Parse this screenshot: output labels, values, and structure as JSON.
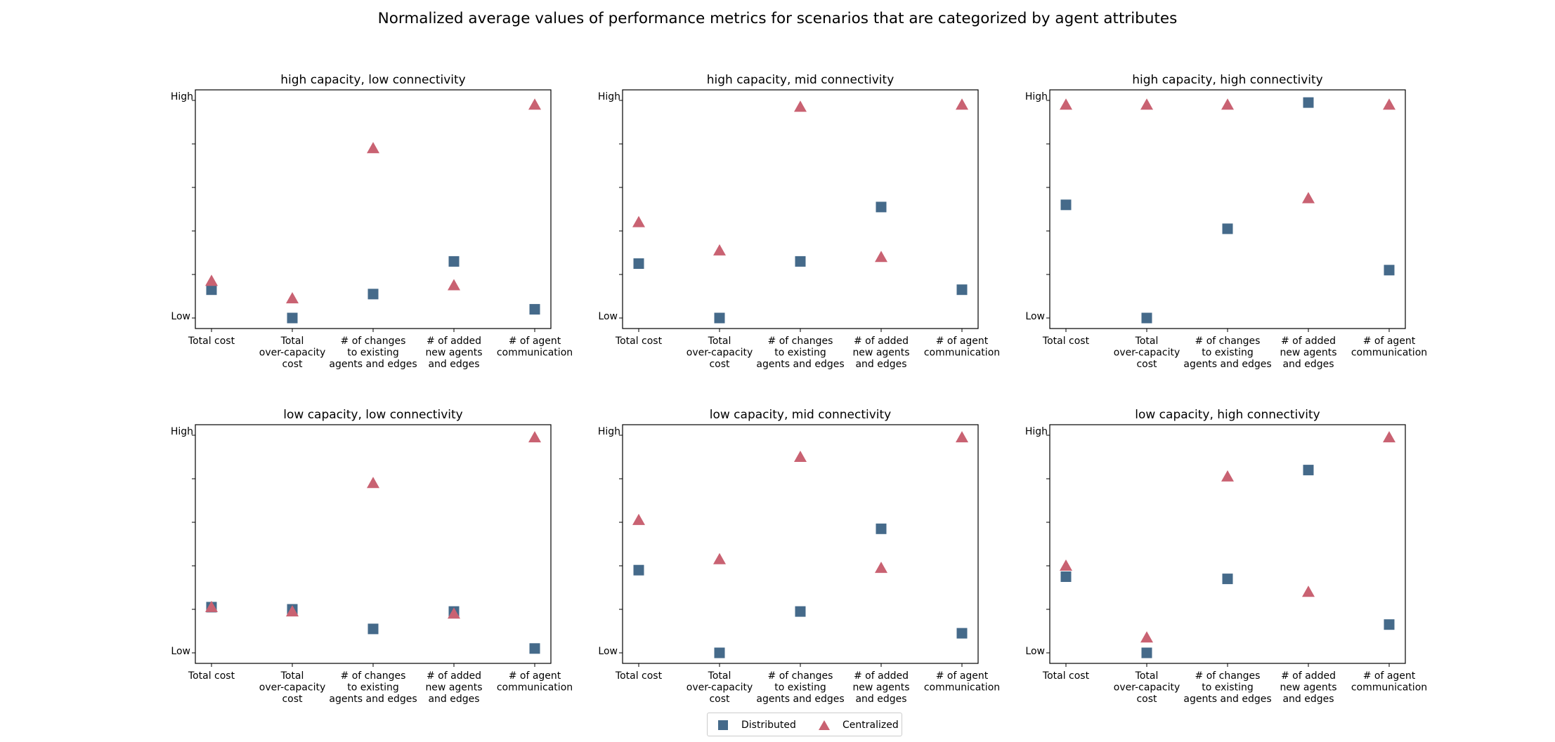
{
  "figure_title": "Normalized average values of performance metrics for scenarios that are categorized by agent attributes",
  "colors": {
    "distributed": "#456a8a",
    "centralized": "#c96272"
  },
  "legend": [
    {
      "label": "Distributed",
      "marker": "square",
      "color": "#456a8a"
    },
    {
      "label": "Centralized",
      "marker": "triangle",
      "color": "#c96272"
    }
  ],
  "chart_data": [
    {
      "type": "scatter",
      "title": "high capacity, low connectivity",
      "categories": [
        "Total cost",
        "Total\nover-capacity\ncost",
        "# of changes\nto existing\nagents and edges",
        "# of added\nnew agents\nand edges",
        "# of agent\ncommunication"
      ],
      "ylim": [
        0,
        1
      ],
      "y_tick_labels": {
        "low": "Low",
        "high": "High"
      },
      "series": [
        {
          "name": "Distributed",
          "marker": "square",
          "values": [
            0.13,
            0.0,
            0.11,
            0.26,
            0.04
          ]
        },
        {
          "name": "Centralized",
          "marker": "triangle",
          "values": [
            0.17,
            0.09,
            0.78,
            0.15,
            0.98
          ]
        }
      ]
    },
    {
      "type": "scatter",
      "title": "high capacity, mid connectivity",
      "categories": [
        "Total cost",
        "Total\nover-capacity\ncost",
        "# of changes\nto existing\nagents and edges",
        "# of added\nnew agents\nand edges",
        "# of agent\ncommunication"
      ],
      "ylim": [
        0,
        1
      ],
      "y_tick_labels": {
        "low": "Low",
        "high": "High"
      },
      "series": [
        {
          "name": "Distributed",
          "marker": "square",
          "values": [
            0.25,
            0.0,
            0.26,
            0.51,
            0.13
          ]
        },
        {
          "name": "Centralized",
          "marker": "triangle",
          "values": [
            0.44,
            0.31,
            0.97,
            0.28,
            0.98
          ]
        }
      ]
    },
    {
      "type": "scatter",
      "title": "high capacity, high connectivity",
      "categories": [
        "Total cost",
        "Total\nover-capacity\ncost",
        "# of changes\nto existing\nagents and edges",
        "# of added\nnew agents\nand edges",
        "# of agent\ncommunication"
      ],
      "ylim": [
        0,
        1
      ],
      "y_tick_labels": {
        "low": "Low",
        "high": "High"
      },
      "series": [
        {
          "name": "Distributed",
          "marker": "square",
          "values": [
            0.52,
            0.0,
            0.41,
            0.99,
            0.22
          ]
        },
        {
          "name": "Centralized",
          "marker": "triangle",
          "values": [
            0.98,
            0.98,
            0.98,
            0.55,
            0.98
          ]
        }
      ]
    },
    {
      "type": "scatter",
      "title": "low capacity, low connectivity",
      "categories": [
        "Total cost",
        "Total\nover-capacity\ncost",
        "# of changes\nto existing\nagents and edges",
        "# of added\nnew agents\nand edges",
        "# of agent\ncommunication"
      ],
      "ylim": [
        0,
        1
      ],
      "y_tick_labels": {
        "low": "Low",
        "high": "High"
      },
      "series": [
        {
          "name": "Distributed",
          "marker": "square",
          "values": [
            0.21,
            0.2,
            0.11,
            0.19,
            0.02
          ]
        },
        {
          "name": "Centralized",
          "marker": "triangle",
          "values": [
            0.21,
            0.19,
            0.78,
            0.18,
            0.99
          ]
        }
      ]
    },
    {
      "type": "scatter",
      "title": "low capacity, mid connectivity",
      "categories": [
        "Total cost",
        "Total\nover-capacity\ncost",
        "# of changes\nto existing\nagents and edges",
        "# of added\nnew agents\nand edges",
        "# of agent\ncommunication"
      ],
      "ylim": [
        0,
        1
      ],
      "y_tick_labels": {
        "low": "Low",
        "high": "High"
      },
      "series": [
        {
          "name": "Distributed",
          "marker": "square",
          "values": [
            0.38,
            0.0,
            0.19,
            0.57,
            0.09
          ]
        },
        {
          "name": "Centralized",
          "marker": "triangle",
          "values": [
            0.61,
            0.43,
            0.9,
            0.39,
            0.99
          ]
        }
      ]
    },
    {
      "type": "scatter",
      "title": "low capacity, high connectivity",
      "categories": [
        "Total cost",
        "Total\nover-capacity\ncost",
        "# of changes\nto existing\nagents and edges",
        "# of added\nnew agents\nand edges",
        "# of agent\ncommunication"
      ],
      "ylim": [
        0,
        1
      ],
      "y_tick_labels": {
        "low": "Low",
        "high": "High"
      },
      "series": [
        {
          "name": "Distributed",
          "marker": "square",
          "values": [
            0.35,
            0.0,
            0.34,
            0.84,
            0.13
          ]
        },
        {
          "name": "Centralized",
          "marker": "triangle",
          "values": [
            0.4,
            0.07,
            0.81,
            0.28,
            0.99
          ]
        }
      ]
    }
  ]
}
